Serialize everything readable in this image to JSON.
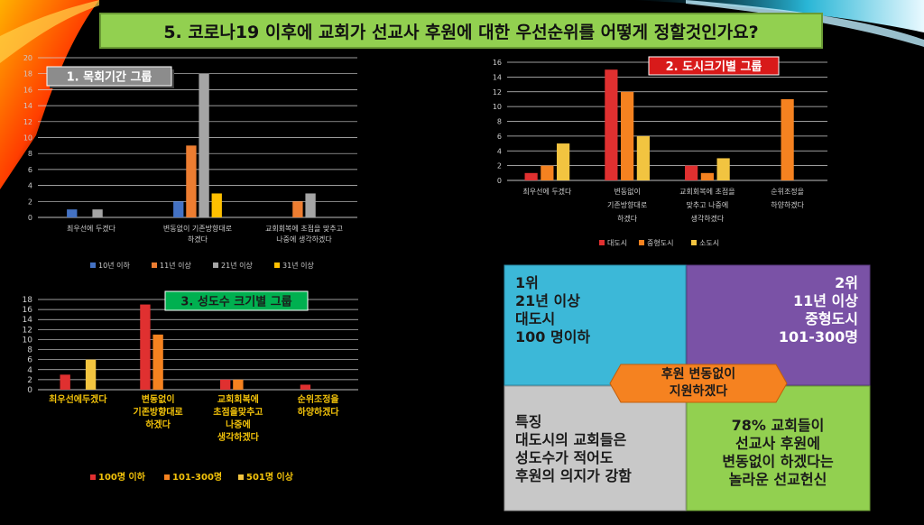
{
  "title": "5. 코로나19 이후에 교회가 선교사 후원에 대한 우선순위를 어떻게 정할것인가요?",
  "chart_data": [
    {
      "type": "bar",
      "title": "1. 목회기간 그룹",
      "categories": [
        [
          "최우선에 두겠다"
        ],
        [
          "변동없이 기존방향대로",
          "하겠다"
        ],
        [
          "교회회복에 초점을 맞추고",
          "나중에 생각하겠다"
        ]
      ],
      "series": [
        {
          "name": "10년 이하",
          "color": "#4472c4",
          "values": [
            1,
            2,
            0
          ]
        },
        {
          "name": "11년 이상",
          "color": "#ed7d31",
          "values": [
            0,
            9,
            2
          ]
        },
        {
          "name": "21년 이상",
          "color": "#a5a5a5",
          "values": [
            1,
            18,
            3
          ]
        },
        {
          "name": "31년 이상",
          "color": "#ffc000",
          "values": [
            0,
            3,
            0
          ]
        }
      ],
      "yticks": [
        0,
        2,
        4,
        6,
        8,
        10,
        12,
        14,
        16,
        18,
        20
      ],
      "ylim": [
        0,
        20
      ],
      "grid": true,
      "legend": "bottom"
    },
    {
      "type": "bar",
      "title": "2. 도시크기별 그룹",
      "categories": [
        [
          "최우선에 두겠다"
        ],
        [
          "변동없이",
          "기존방향대로",
          "하겠다"
        ],
        [
          "교회회복에 초점을",
          "맞추고 나중에",
          "생각하겠다"
        ],
        [
          "순위조정을",
          "하양하겠다"
        ]
      ],
      "series": [
        {
          "name": "대도시",
          "color": "#e03030",
          "values": [
            1,
            15,
            2,
            0
          ]
        },
        {
          "name": "중형도시",
          "color": "#f58220",
          "values": [
            2,
            12,
            1,
            11
          ]
        },
        {
          "name": "소도시",
          "color": "#f2c440",
          "values": [
            5,
            6,
            3,
            0
          ]
        }
      ],
      "yticks": [
        0,
        2,
        4,
        6,
        8,
        10,
        12,
        14,
        16
      ],
      "ylim": [
        0,
        16
      ],
      "grid": true,
      "legend": "bottom"
    },
    {
      "type": "bar",
      "title": "3. 성도수 크기별 그룹",
      "categories": [
        [
          "최우선에두겠다"
        ],
        [
          "변동없이",
          "기존방향대로",
          "하겠다"
        ],
        [
          "교회회복에",
          "초점을맞추고",
          "나중에",
          "생각하겠다"
        ],
        [
          "순위조정을",
          "하양하겠다"
        ]
      ],
      "series": [
        {
          "name": "100명 이하",
          "color": "#e03030",
          "values": [
            3,
            17,
            2,
            1
          ]
        },
        {
          "name": "101-300명",
          "color": "#f58220",
          "values": [
            0,
            11,
            2,
            0
          ]
        },
        {
          "name": "501명 이상",
          "color": "#f2c440",
          "values": [
            6,
            0,
            0,
            0
          ]
        }
      ],
      "yticks": [
        0,
        2,
        4,
        6,
        8,
        10,
        12,
        14,
        16,
        18
      ],
      "ylim": [
        0,
        18
      ],
      "grid": true,
      "legend": "bottom"
    }
  ],
  "summary": {
    "top_left": [
      "1위",
      "21년 이상",
      "대도시",
      "100 명이하"
    ],
    "top_right": [
      "2위",
      "11년 이상",
      "중형도시",
      "101-300명"
    ],
    "center": [
      "후원 변동없이",
      "지원하겠다"
    ],
    "bottom_left": [
      "특징",
      "대도시의 교회들은",
      "성도수가 적어도",
      "후원의 의지가 강함"
    ],
    "bottom_right": [
      "78% 교회들이",
      "선교사 후원에",
      "변동없이 하겠다는",
      "놀라운 선교헌신"
    ]
  },
  "colors": {
    "title_bg": "#92d050",
    "cell_top_left": "#3cb8d8",
    "cell_top_right": "#7a52a6",
    "cell_bottom_left": "#c8c8c8",
    "cell_bottom_right": "#92d050",
    "center_badge": "#f58220"
  }
}
